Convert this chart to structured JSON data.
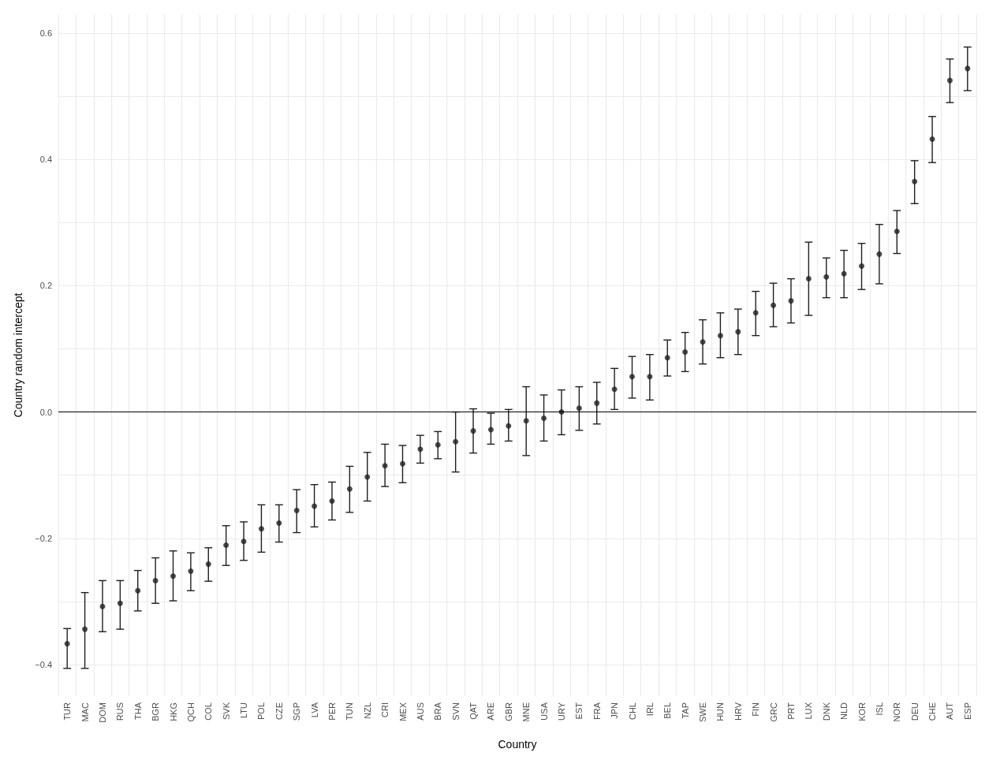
{
  "chart_data": {
    "type": "scatter",
    "xlabel": "Country",
    "ylabel": "Country random intercept",
    "categories": [
      "TUR",
      "MAC",
      "DOM",
      "RUS",
      "THA",
      "BGR",
      "HKG",
      "QCH",
      "COL",
      "SVK",
      "LTU",
      "POL",
      "CZE",
      "SGP",
      "LVA",
      "PER",
      "TUN",
      "NZL",
      "CRI",
      "MEX",
      "AUS",
      "BRA",
      "SVN",
      "QAT",
      "ARE",
      "GBR",
      "MNE",
      "USA",
      "URY",
      "EST",
      "FRA",
      "JPN",
      "CHL",
      "IRL",
      "BEL",
      "TAP",
      "SWE",
      "HUN",
      "HRV",
      "FIN",
      "GRC",
      "PRT",
      "LUX",
      "DNK",
      "NLD",
      "KOR",
      "ISL",
      "NOR",
      "DEU",
      "CHE",
      "AUT",
      "ESP"
    ],
    "series": [
      {
        "color": "#1f1f1f",
        "values": [
          -0.367,
          -0.344,
          -0.308,
          -0.303,
          -0.283,
          -0.267,
          -0.26,
          -0.252,
          -0.241,
          -0.211,
          -0.205,
          -0.185,
          -0.176,
          -0.156,
          -0.149,
          -0.141,
          -0.122,
          -0.103,
          -0.085,
          -0.082,
          -0.059,
          -0.052,
          -0.047,
          -0.03,
          -0.028,
          -0.022,
          -0.014,
          -0.01,
          0.0,
          0.006,
          0.014,
          0.036,
          0.056,
          0.056,
          0.086,
          0.095,
          0.111,
          0.121,
          0.127,
          0.157,
          0.169,
          0.176,
          0.211,
          0.214,
          0.219,
          0.231,
          0.25,
          0.286,
          0.365,
          0.432,
          0.525,
          0.544
        ],
        "errors": [
          [
            -0.406,
            -0.343
          ],
          [
            -0.406,
            -0.286
          ],
          [
            -0.348,
            -0.267
          ],
          [
            -0.344,
            -0.267
          ],
          [
            -0.315,
            -0.251
          ],
          [
            -0.303,
            -0.231
          ],
          [
            -0.299,
            -0.22
          ],
          [
            -0.283,
            -0.223
          ],
          [
            -0.268,
            -0.215
          ],
          [
            -0.243,
            -0.18
          ],
          [
            -0.235,
            -0.174
          ],
          [
            -0.222,
            -0.147
          ],
          [
            -0.206,
            -0.147
          ],
          [
            -0.191,
            -0.123
          ],
          [
            -0.182,
            -0.115
          ],
          [
            -0.171,
            -0.111
          ],
          [
            -0.159,
            -0.086
          ],
          [
            -0.141,
            -0.064
          ],
          [
            -0.118,
            -0.051
          ],
          [
            -0.112,
            -0.053
          ],
          [
            -0.081,
            -0.037
          ],
          [
            -0.074,
            -0.031
          ],
          [
            -0.095,
            0.0
          ],
          [
            -0.065,
            0.005
          ],
          [
            -0.051,
            -0.002
          ],
          [
            -0.046,
            0.004
          ],
          [
            -0.069,
            0.04
          ],
          [
            -0.046,
            0.027
          ],
          [
            -0.036,
            0.035
          ],
          [
            -0.029,
            0.04
          ],
          [
            -0.019,
            0.047
          ],
          [
            0.004,
            0.069
          ],
          [
            0.022,
            0.088
          ],
          [
            0.019,
            0.091
          ],
          [
            0.057,
            0.114
          ],
          [
            0.064,
            0.126
          ],
          [
            0.076,
            0.146
          ],
          [
            0.086,
            0.157
          ],
          [
            0.091,
            0.163
          ],
          [
            0.121,
            0.191
          ],
          [
            0.135,
            0.204
          ],
          [
            0.141,
            0.211
          ],
          [
            0.153,
            0.269
          ],
          [
            0.181,
            0.244
          ],
          [
            0.181,
            0.256
          ],
          [
            0.194,
            0.267
          ],
          [
            0.203,
            0.297
          ],
          [
            0.251,
            0.319
          ],
          [
            0.33,
            0.398
          ],
          [
            0.395,
            0.468
          ],
          [
            0.49,
            0.559
          ],
          [
            0.509,
            0.578
          ]
        ]
      }
    ],
    "ylim": [
      -0.45,
      0.63
    ],
    "yticks": [
      {
        "value": -0.4,
        "label": "−0.4"
      },
      {
        "value": -0.3,
        "label": null
      },
      {
        "value": -0.2,
        "label": "−0.2"
      },
      {
        "value": -0.1,
        "label": null
      },
      {
        "value": 0,
        "label": "0.0"
      },
      {
        "value": 0.1,
        "label": null
      },
      {
        "value": 0.2,
        "label": "0.2"
      },
      {
        "value": 0.3,
        "label": null
      },
      {
        "value": 0.4,
        "label": "0.4"
      },
      {
        "value": 0.5,
        "label": null
      },
      {
        "value": 0.6,
        "label": "0.6"
      }
    ],
    "ref_lines": [
      {
        "axis": "y",
        "value": 0,
        "color": "#000000"
      }
    ],
    "grid": true,
    "marker": "circle"
  }
}
